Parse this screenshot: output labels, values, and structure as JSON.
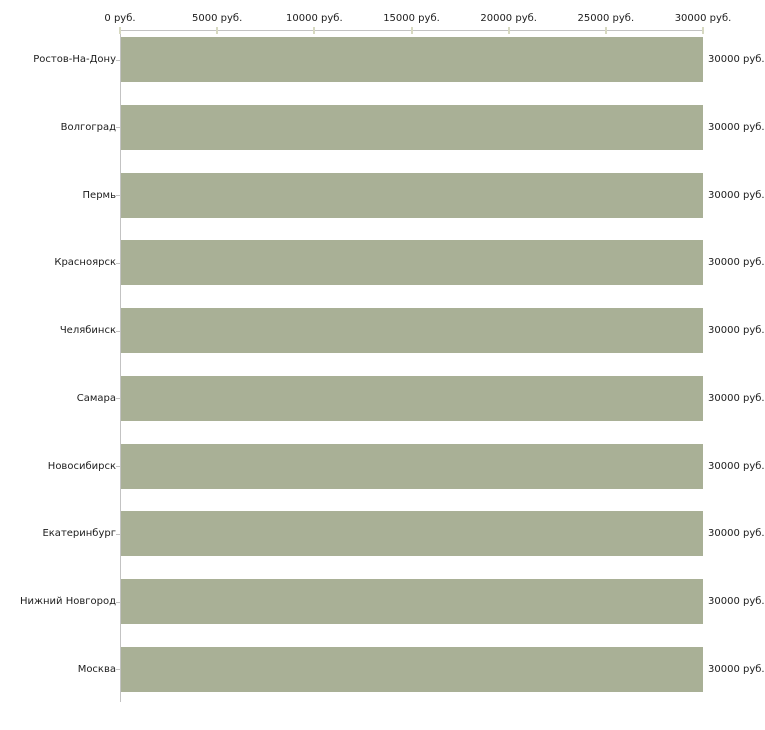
{
  "chart_data": {
    "type": "bar",
    "orientation": "horizontal",
    "title": "",
    "xlabel": "",
    "ylabel": "",
    "categories": [
      "Ростов-На-Дону",
      "Волгоград",
      "Пермь",
      "Красноярск",
      "Челябинск",
      "Самара",
      "Новосибирск",
      "Екатеринбург",
      "Нижний Новгород",
      "Москва"
    ],
    "values": [
      30000,
      30000,
      30000,
      30000,
      30000,
      30000,
      30000,
      30000,
      30000,
      30000
    ],
    "bar_value_labels": [
      "30000 руб.",
      "30000 руб.",
      "30000 руб.",
      "30000 руб.",
      "30000 руб.",
      "30000 руб.",
      "30000 руб.",
      "30000 руб.",
      "30000 руб.",
      "30000 руб."
    ],
    "x_axis": {
      "position": "top",
      "min": 0,
      "max": 30000,
      "tick_step": 5000,
      "tick_values": [
        0,
        5000,
        10000,
        15000,
        20000,
        25000,
        30000
      ],
      "tick_labels": [
        "0 руб.",
        "5000 руб.",
        "10000 руб.",
        "15000 руб.",
        "20000 руб.",
        "25000 руб.",
        "30000 руб."
      ]
    },
    "grid": false,
    "legend": "none"
  },
  "colors": {
    "bar_fill": "#a9b096",
    "axis_line": "#c3c3c3",
    "x_tick": "#d7d9c1",
    "text": "#1c1c1c",
    "background": "#ffffff"
  }
}
